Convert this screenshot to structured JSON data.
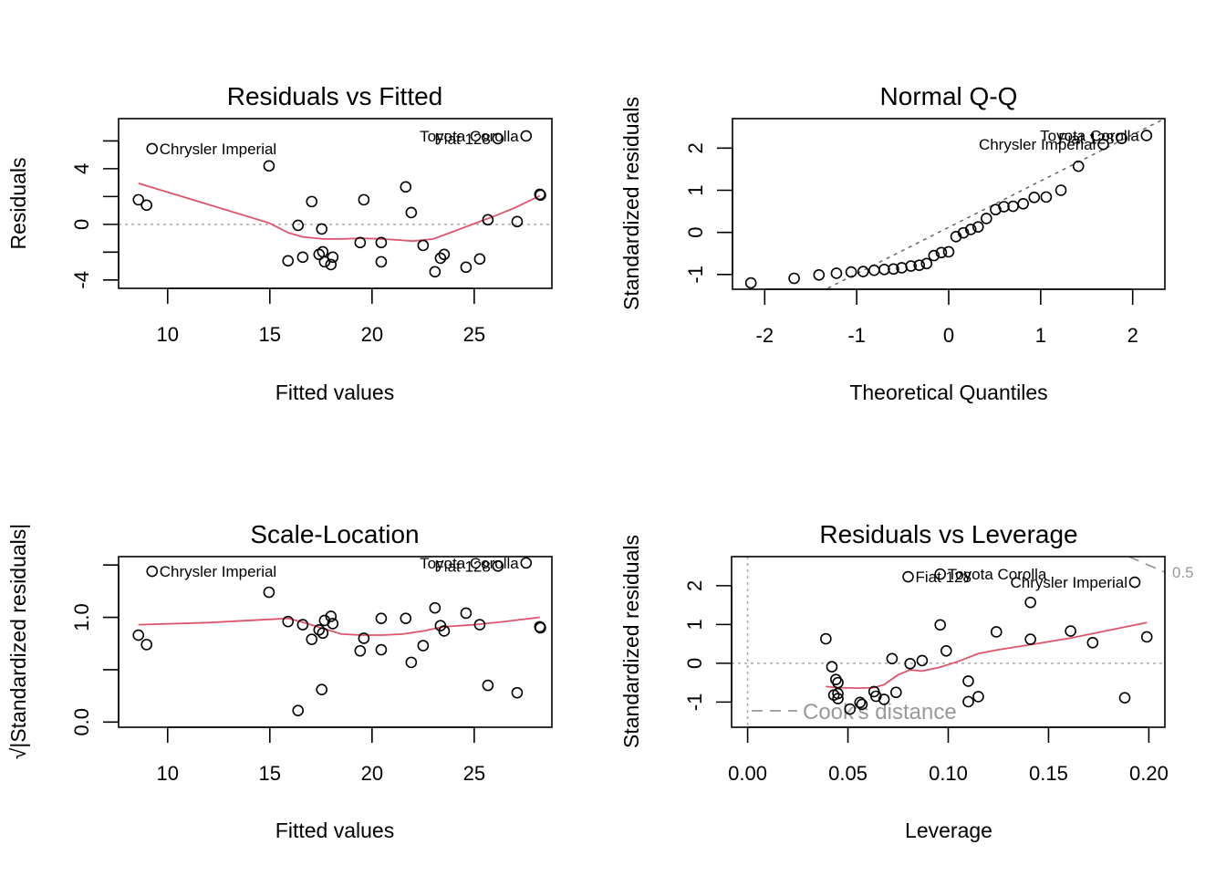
{
  "chart_data": [
    {
      "type": "scatter",
      "title": "Residuals vs Fitted",
      "xlabel": "Fitted values",
      "ylabel": "Residuals",
      "xlim": [
        7.6,
        28.8
      ],
      "ylim": [
        -4.6,
        7.6
      ],
      "xticks": [
        10,
        15,
        20,
        25
      ],
      "xtick_labels": [
        "10",
        "15",
        "20",
        "25"
      ],
      "yticks": [
        -4,
        -2,
        0,
        2,
        4,
        6
      ],
      "ytick_labels": [
        "-4",
        "",
        "0",
        "",
        "4",
        ""
      ],
      "reference_line": {
        "type": "horizontal",
        "y": 0,
        "style": "dotted",
        "color": "#aaaaaa"
      },
      "points": [
        {
          "x": 8.57,
          "y": 1.77
        },
        {
          "x": 8.97,
          "y": 1.38
        },
        {
          "x": 9.24,
          "y": 5.44,
          "label": "Chrysler Imperial"
        },
        {
          "x": 14.96,
          "y": 4.2
        },
        {
          "x": 16.38,
          "y": -0.07
        },
        {
          "x": 15.89,
          "y": -2.62
        },
        {
          "x": 16.61,
          "y": -2.36
        },
        {
          "x": 17.05,
          "y": 1.64
        },
        {
          "x": 17.41,
          "y": -2.16
        },
        {
          "x": 17.54,
          "y": -0.33
        },
        {
          "x": 17.59,
          "y": -1.97
        },
        {
          "x": 17.68,
          "y": -2.69
        },
        {
          "x": 17.99,
          "y": -2.89
        },
        {
          "x": 18.08,
          "y": -2.36
        },
        {
          "x": 19.42,
          "y": -1.31
        },
        {
          "x": 19.6,
          "y": 1.77
        },
        {
          "x": 20.45,
          "y": -1.31
        },
        {
          "x": 20.45,
          "y": -2.69
        },
        {
          "x": 21.65,
          "y": 2.69
        },
        {
          "x": 21.92,
          "y": 0.85
        },
        {
          "x": 22.5,
          "y": -1.51
        },
        {
          "x": 23.08,
          "y": -3.41
        },
        {
          "x": 23.35,
          "y": -2.43
        },
        {
          "x": 23.53,
          "y": -2.16
        },
        {
          "x": 24.6,
          "y": -3.08
        },
        {
          "x": 25.27,
          "y": -2.49
        },
        {
          "x": 25.67,
          "y": 0.33
        },
        {
          "x": 26.16,
          "y": 6.16,
          "label": "Fiat 128"
        },
        {
          "x": 27.1,
          "y": 0.2
        },
        {
          "x": 27.54,
          "y": 6.36,
          "label": "Toyota Corolla"
        },
        {
          "x": 28.21,
          "y": 2.16
        },
        {
          "x": 28.24,
          "y": 2.1
        }
      ],
      "smooth": {
        "color": "#DF536B",
        "x": [
          8.57,
          14.96,
          15.9,
          16.6,
          17.6,
          18.5,
          19.5,
          20.5,
          21.5,
          22.0,
          23.0,
          24.0,
          25.0,
          26.0,
          27.0,
          28.21
        ],
        "y": [
          2.95,
          0.1,
          -0.6,
          -0.9,
          -1.05,
          -1.05,
          -1.0,
          -1.05,
          -1.15,
          -1.2,
          -1.05,
          -0.5,
          0.05,
          0.6,
          1.2,
          2.05
        ]
      },
      "point_labels": [
        "Chrysler Imperial",
        "Fiat 128",
        "Toyota Corolla"
      ]
    },
    {
      "type": "scatter",
      "title": "Normal Q-Q",
      "xlabel": "Theoretical Quantiles",
      "ylabel": "Standardized residuals",
      "xlim": [
        -2.35,
        2.35
      ],
      "ylim": [
        -1.35,
        2.7
      ],
      "xticks": [
        -2,
        -1,
        0,
        1,
        2
      ],
      "xtick_labels": [
        "-2",
        "-1",
        "0",
        "1",
        "2"
      ],
      "yticks": [
        -1,
        0,
        1,
        2
      ],
      "ytick_labels": [
        "-1",
        "0",
        "1",
        "2"
      ],
      "reference_line": {
        "type": "qq",
        "color": "#666666",
        "style": "dashed",
        "intercept": 0.12,
        "slope": 1.1
      },
      "points": [
        {
          "x": -2.15,
          "y": -1.2
        },
        {
          "x": -1.68,
          "y": -1.09
        },
        {
          "x": -1.41,
          "y": -1.01
        },
        {
          "x": -1.22,
          "y": -0.97
        },
        {
          "x": -1.06,
          "y": -0.94
        },
        {
          "x": -0.93,
          "y": -0.93
        },
        {
          "x": -0.81,
          "y": -0.9
        },
        {
          "x": -0.7,
          "y": -0.88
        },
        {
          "x": -0.6,
          "y": -0.87
        },
        {
          "x": -0.51,
          "y": -0.84
        },
        {
          "x": -0.41,
          "y": -0.8
        },
        {
          "x": -0.32,
          "y": -0.78
        },
        {
          "x": -0.24,
          "y": -0.74
        },
        {
          "x": -0.16,
          "y": -0.55
        },
        {
          "x": -0.08,
          "y": -0.48
        },
        {
          "x": 0.0,
          "y": -0.46
        },
        {
          "x": 0.08,
          "y": -0.1
        },
        {
          "x": 0.16,
          "y": -0.01
        },
        {
          "x": 0.24,
          "y": 0.07
        },
        {
          "x": 0.32,
          "y": 0.13
        },
        {
          "x": 0.41,
          "y": 0.33
        },
        {
          "x": 0.51,
          "y": 0.54
        },
        {
          "x": 0.6,
          "y": 0.61
        },
        {
          "x": 0.7,
          "y": 0.62
        },
        {
          "x": 0.81,
          "y": 0.68
        },
        {
          "x": 0.93,
          "y": 0.83
        },
        {
          "x": 1.06,
          "y": 0.84
        },
        {
          "x": 1.22,
          "y": 1.0
        },
        {
          "x": 1.41,
          "y": 1.57
        },
        {
          "x": 1.68,
          "y": 2.09,
          "label": "Chrysler Imperial"
        },
        {
          "x": 1.88,
          "y": 2.23,
          "label": "Fiat 128"
        },
        {
          "x": 2.15,
          "y": 2.3,
          "label": "Toyota Corolla"
        }
      ],
      "point_labels": [
        "Chrysler Imperial",
        "Fiat 128",
        "Toyota Corolla"
      ]
    },
    {
      "type": "scatter",
      "title": "Scale-Location",
      "xlabel": "Fitted values",
      "ylabel": "√|Standardized residuals|",
      "xlim": [
        7.6,
        28.8
      ],
      "ylim": [
        -0.05,
        1.58
      ],
      "xticks": [
        10,
        15,
        20,
        25
      ],
      "xtick_labels": [
        "10",
        "15",
        "20",
        "25"
      ],
      "yticks": [
        0.0,
        0.5,
        1.0,
        1.5
      ],
      "ytick_labels": [
        "0.0",
        "",
        "1.0",
        ""
      ],
      "points": [
        {
          "x": 8.57,
          "y": 0.83
        },
        {
          "x": 8.97,
          "y": 0.74
        },
        {
          "x": 9.24,
          "y": 1.44,
          "label": "Chrysler Imperial"
        },
        {
          "x": 14.96,
          "y": 1.24
        },
        {
          "x": 15.89,
          "y": 0.96
        },
        {
          "x": 16.38,
          "y": 0.11
        },
        {
          "x": 16.61,
          "y": 0.93
        },
        {
          "x": 17.05,
          "y": 0.79
        },
        {
          "x": 17.41,
          "y": 0.88
        },
        {
          "x": 17.54,
          "y": 0.31
        },
        {
          "x": 17.59,
          "y": 0.85
        },
        {
          "x": 17.68,
          "y": 0.97
        },
        {
          "x": 17.99,
          "y": 1.01
        },
        {
          "x": 18.08,
          "y": 0.94
        },
        {
          "x": 19.42,
          "y": 0.68
        },
        {
          "x": 19.6,
          "y": 0.8
        },
        {
          "x": 20.45,
          "y": 0.99
        },
        {
          "x": 20.45,
          "y": 0.69
        },
        {
          "x": 21.65,
          "y": 0.99
        },
        {
          "x": 21.92,
          "y": 0.57
        },
        {
          "x": 22.5,
          "y": 0.73
        },
        {
          "x": 23.08,
          "y": 1.09
        },
        {
          "x": 23.35,
          "y": 0.92
        },
        {
          "x": 23.53,
          "y": 0.87
        },
        {
          "x": 24.6,
          "y": 1.04
        },
        {
          "x": 25.27,
          "y": 0.93
        },
        {
          "x": 25.67,
          "y": 0.35
        },
        {
          "x": 26.16,
          "y": 1.49,
          "label": "Fiat 128"
        },
        {
          "x": 27.1,
          "y": 0.28
        },
        {
          "x": 27.54,
          "y": 1.52,
          "label": "Toyota Corolla"
        },
        {
          "x": 28.21,
          "y": 0.91
        },
        {
          "x": 28.24,
          "y": 0.9
        }
      ],
      "smooth": {
        "color": "#DF536B",
        "x": [
          8.57,
          12.0,
          15.9,
          16.5,
          17.5,
          18.5,
          19.5,
          20.5,
          21.5,
          22.5,
          23.5,
          25.0,
          26.5,
          28.21
        ],
        "y": [
          0.93,
          0.95,
          0.99,
          0.96,
          0.9,
          0.84,
          0.83,
          0.83,
          0.84,
          0.87,
          0.91,
          0.93,
          0.96,
          1.0
        ]
      },
      "point_labels": [
        "Chrysler Imperial",
        "Fiat 128",
        "Toyota Corolla"
      ]
    },
    {
      "type": "scatter",
      "title": "Residuals vs Leverage",
      "xlabel": "Leverage",
      "ylabel": "Standardized residuals",
      "xlim": [
        -0.008,
        0.208
      ],
      "ylim": [
        -1.65,
        2.75
      ],
      "xticks": [
        0.0,
        0.05,
        0.1,
        0.15,
        0.2
      ],
      "xtick_labels": [
        "0.00",
        "0.05",
        "0.10",
        "0.15",
        "0.20"
      ],
      "yticks": [
        -1,
        0,
        1,
        2
      ],
      "ytick_labels": [
        "-1",
        "0",
        "1",
        "2"
      ],
      "reference_lines": [
        {
          "type": "horizontal",
          "y": 0,
          "style": "dotted",
          "color": "#aaaaaa"
        },
        {
          "type": "vertical",
          "x": 0,
          "style": "dotted",
          "color": "#aaaaaa"
        }
      ],
      "cooks_distance": {
        "legend": "Cook's distance",
        "contour_label": "0.5",
        "color": "#999999"
      },
      "points": [
        {
          "x": 0.039,
          "y": 0.63
        },
        {
          "x": 0.042,
          "y": -0.09
        },
        {
          "x": 0.044,
          "y": -0.42
        },
        {
          "x": 0.045,
          "y": -0.5
        },
        {
          "x": 0.043,
          "y": -0.82
        },
        {
          "x": 0.045,
          "y": -0.78
        },
        {
          "x": 0.045,
          "y": -0.91
        },
        {
          "x": 0.051,
          "y": -1.18
        },
        {
          "x": 0.056,
          "y": -1.01
        },
        {
          "x": 0.057,
          "y": -1.06
        },
        {
          "x": 0.063,
          "y": -0.73
        },
        {
          "x": 0.064,
          "y": -0.85
        },
        {
          "x": 0.068,
          "y": -0.93
        },
        {
          "x": 0.072,
          "y": 0.12
        },
        {
          "x": 0.074,
          "y": -0.75
        },
        {
          "x": 0.081,
          "y": -0.01
        },
        {
          "x": 0.087,
          "y": 0.07
        },
        {
          "x": 0.096,
          "y": 0.99
        },
        {
          "x": 0.099,
          "y": 0.32
        },
        {
          "x": 0.11,
          "y": -0.46
        },
        {
          "x": 0.11,
          "y": -0.99
        },
        {
          "x": 0.115,
          "y": -0.86
        },
        {
          "x": 0.124,
          "y": 0.81
        },
        {
          "x": 0.141,
          "y": 1.57
        },
        {
          "x": 0.141,
          "y": 0.62
        },
        {
          "x": 0.161,
          "y": 0.83
        },
        {
          "x": 0.172,
          "y": 0.53
        },
        {
          "x": 0.188,
          "y": -0.89
        },
        {
          "x": 0.199,
          "y": 0.68
        },
        {
          "x": 0.08,
          "y": 2.23,
          "label": "Fiat 128"
        },
        {
          "x": 0.096,
          "y": 2.3,
          "label": "Toyota Corolla"
        },
        {
          "x": 0.193,
          "y": 2.09,
          "label": "Chrysler Imperial"
        }
      ],
      "smooth": {
        "color": "#DF536B",
        "x": [
          0.039,
          0.045,
          0.055,
          0.063,
          0.068,
          0.075,
          0.081,
          0.087,
          0.096,
          0.105,
          0.115,
          0.125,
          0.141,
          0.161,
          0.18,
          0.199
        ],
        "y": [
          -0.6,
          -0.63,
          -0.64,
          -0.63,
          -0.55,
          -0.3,
          -0.17,
          -0.2,
          -0.1,
          0.05,
          0.25,
          0.35,
          0.48,
          0.65,
          0.85,
          1.05
        ]
      },
      "point_labels": [
        "Fiat 128",
        "Toyota Corolla",
        "Chrysler Imperial"
      ]
    }
  ]
}
